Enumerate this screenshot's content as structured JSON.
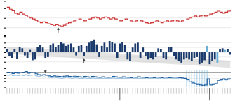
{
  "chart_data": [
    {
      "type": "line",
      "line_style": "step",
      "series": [
        {
          "color": "#cc3333",
          "values": [
            0.72,
            0.68,
            0.65,
            0.6,
            0.58,
            0.62,
            0.58,
            0.55,
            0.52,
            0.5,
            0.48,
            0.45,
            0.42,
            0.4,
            0.42,
            0.4,
            0.38,
            0.36,
            0.34,
            0.36,
            0.34,
            0.32,
            0.35,
            0.38,
            0.4,
            0.42,
            0.44,
            0.46,
            0.48,
            0.46,
            0.44,
            0.46,
            0.48,
            0.5,
            0.52,
            0.5,
            0.48,
            0.5,
            0.52,
            0.5,
            0.48,
            0.5,
            0.48,
            0.46,
            0.44,
            0.46,
            0.48,
            0.46,
            0.44,
            0.42,
            0.44,
            0.46,
            0.44,
            0.42,
            0.4,
            0.38,
            0.4,
            0.42,
            0.44,
            0.42,
            0.4,
            0.42,
            0.44,
            0.42,
            0.44,
            0.46,
            0.44,
            0.42,
            0.44,
            0.46,
            0.48,
            0.5,
            0.52,
            0.54,
            0.52,
            0.54,
            0.56,
            0.54,
            0.56,
            0.58,
            0.6,
            0.62,
            0.64,
            0.62,
            0.6,
            0.62,
            0.64,
            0.66
          ]
        }
      ],
      "ylim": [
        0.15,
        0.85
      ],
      "yticks": [
        0.3,
        0.5,
        0.7
      ],
      "grid": true,
      "tick_labels": false,
      "arrows": [
        20
      ]
    },
    {
      "type": "bar",
      "values": [
        2.0,
        -2.5,
        -3.5,
        2.0,
        -4.0,
        3.5,
        2.5,
        -2.0,
        -3.5,
        1.5,
        -5.0,
        -4.5,
        3.5,
        4.5,
        3.0,
        -3.5,
        -3.0,
        4.5,
        5.5,
        3.5,
        4.5,
        6.5,
        5.5,
        4.0,
        5.0,
        5.5,
        3.0,
        -2.0,
        4.0,
        4.5,
        -2.5,
        4.0,
        6.0,
        7.0,
        8.0,
        5.0,
        -3.0,
        4.0,
        6.0,
        3.0,
        7.0,
        6.5,
        5.5,
        -3.5,
        5.5,
        6.5,
        4.5,
        -4.5,
        -5.5,
        3.0,
        5.5,
        6.0,
        -3.5,
        3.0,
        -2.5,
        -4.5,
        -3.5,
        -4.5,
        -3.0,
        2.5,
        2.0,
        -3.5,
        -4.5,
        3.5,
        3.5,
        -2.5,
        -4.5,
        -5.5,
        -6.5,
        -4.5,
        -3.5,
        -4.5,
        -5.5,
        -3.5,
        -3.0,
        -7.5,
        -6.5,
        -5.0,
        4.0,
        -7.5,
        -5.5,
        -4.5,
        -6.5,
        2.0,
        2.5,
        1.5,
        2.0,
        -1.5
      ],
      "colors": [
        "#1a3a6b",
        "#1a3a6b",
        "#1a3a6b",
        "#1a3a6b",
        "#1a3a6b",
        "#1a3a6b",
        "#1a3a6b",
        "#1a3a6b",
        "#1a3a6b",
        "#1a3a6b",
        "#1a3a6b",
        "#1a3a6b",
        "#1a3a6b",
        "#1a3a6b",
        "#1a3a6b",
        "#1a3a6b",
        "#1a3a6b",
        "#1a3a6b",
        "#1a3a6b",
        "#1a3a6b",
        "#1a3a6b",
        "#1a3a6b",
        "#1a3a6b",
        "#1a3a6b",
        "#1a3a6b",
        "#1a3a6b",
        "#1a3a6b",
        "#1a3a6b",
        "#1a3a6b",
        "#1a3a6b",
        "#1a3a6b",
        "#1a3a6b",
        "#1a3a6b",
        "#1a3a6b",
        "#1a3a6b",
        "#1a3a6b",
        "#1a3a6b",
        "#1a3a6b",
        "#1a3a6b",
        "#1a3a6b",
        "#1a3a6b",
        "#1a3a6b",
        "#1a3a6b",
        "#1a3a6b",
        "#1a3a6b",
        "#1a3a6b",
        "#1a3a6b",
        "#1a3a6b",
        "#1a3a6b",
        "#1a3a6b",
        "#1a3a6b",
        "#1a3a6b",
        "#1a3a6b",
        "#1a3a6b",
        "#1a3a6b",
        "#1a3a6b",
        "#1a3a6b",
        "#1a3a6b",
        "#1a3a6b",
        "#1a3a6b",
        "#1a3a6b",
        "#1a3a6b",
        "#1a3a6b",
        "#1a3a6b",
        "#1a3a6b",
        "#1a3a6b",
        "#1a3a6b",
        "#1a3a6b",
        "#1a3a6b",
        "#1a3a6b",
        "#1a3a6b",
        "#1a3a6b",
        "#1a3a6b",
        "#1a3a6b",
        "#1a3a6b",
        "#1a3a6b",
        "#1a3a6b",
        "#1a3a6b",
        "#6aaed6",
        "#1a3a6b",
        "#1a3a6b",
        "#1a3a6b",
        "#6aaed6",
        "#1a3a6b",
        "#1a3a6b",
        "#6aaed6",
        "#1a3a6b",
        "#1a3a6b"
      ],
      "band_upper": [
        3.5,
        3.4,
        3.3,
        3.2,
        3.1,
        3.0,
        2.9,
        2.8,
        2.7,
        2.6,
        2.5,
        2.4,
        2.3,
        2.2,
        2.1,
        2.0,
        1.9,
        1.8,
        1.7,
        1.6,
        1.5,
        1.4,
        1.3,
        1.2,
        1.1,
        1.0,
        0.9,
        0.8,
        0.7,
        0.6,
        0.5,
        0.4,
        0.3,
        0.2,
        0.1,
        0.0,
        -0.1,
        -0.2,
        -0.3,
        -0.4,
        -0.5,
        -0.6,
        -0.7,
        -0.8,
        -0.9,
        -1.0,
        -1.1,
        -1.2,
        -1.3,
        -1.4,
        -1.5,
        -1.6,
        -1.7,
        -1.8,
        -1.9,
        -2.0,
        -2.1,
        -2.2,
        -2.3,
        -2.4,
        -2.5,
        -2.6,
        -2.7,
        -2.8,
        -2.9,
        -3.0,
        -3.1,
        -3.2,
        -3.3,
        -3.4,
        -3.5,
        -3.6,
        -3.7,
        -3.8,
        -3.9,
        -4.0,
        -4.1,
        -4.2,
        -4.3,
        -4.4,
        -4.5,
        -4.6,
        -4.7,
        -4.8,
        -4.9,
        -5.0,
        -5.1,
        -5.2
      ],
      "band_lower": [
        -1.0,
        -1.1,
        -1.2,
        -1.3,
        -1.4,
        -1.5,
        -1.6,
        -1.7,
        -1.8,
        -1.9,
        -2.0,
        -2.1,
        -2.2,
        -2.3,
        -2.4,
        -2.5,
        -2.6,
        -2.7,
        -2.8,
        -2.9,
        -3.0,
        -3.1,
        -3.2,
        -3.3,
        -3.4,
        -3.5,
        -3.6,
        -3.7,
        -3.8,
        -3.9,
        -4.0,
        -4.1,
        -4.2,
        -4.3,
        -4.4,
        -4.5,
        -4.6,
        -4.7,
        -4.8,
        -4.9,
        -5.0,
        -5.1,
        -5.2,
        -5.3,
        -5.4,
        -5.5,
        -5.6,
        -5.7,
        -5.8,
        -5.9,
        -6.0,
        -6.1,
        -6.2,
        -6.3,
        -6.4,
        -6.5,
        -6.6,
        -6.7,
        -6.8,
        -6.9,
        -7.0,
        -7.1,
        -7.2,
        -7.3,
        -7.4,
        -7.5,
        -7.6,
        -7.7,
        -7.8,
        -7.9,
        -8.0,
        -8.1,
        -8.2,
        -8.3,
        -8.4,
        -8.5,
        -8.6,
        -8.7,
        -8.8,
        -8.9,
        -9.0,
        -9.1,
        -9.2,
        -9.3,
        -9.4,
        -9.5,
        -9.6,
        -9.7
      ],
      "ylim": [
        -10,
        10
      ],
      "yticks": [
        -6,
        -3,
        0,
        3,
        6
      ],
      "grid": true,
      "tick_labels": false,
      "arrows": [
        30
      ]
    },
    {
      "type": "line",
      "line_style": "step",
      "series": [
        {
          "color": "#90bce0",
          "values": [
            0.2,
            0.22,
            0.19,
            0.2,
            0.19,
            0.21,
            0.19,
            0.22,
            0.19,
            0.2,
            0.21,
            0.18,
            0.16,
            0.14,
            0.15,
            0.14,
            0.13,
            0.12,
            0.13,
            0.12,
            0.11,
            0.1,
            0.12,
            0.13,
            0.11,
            0.1,
            0.12,
            0.11,
            0.1,
            0.1,
            0.11,
            0.1,
            0.1,
            0.11,
            0.1,
            0.1,
            0.09,
            0.1,
            0.1,
            0.09,
            0.1,
            0.11,
            0.1,
            0.1,
            0.09,
            0.1,
            0.1,
            0.09,
            0.08,
            0.1,
            0.09,
            0.1,
            0.1,
            0.09,
            0.08,
            0.1,
            0.09,
            0.08,
            0.1,
            0.09,
            0.08,
            0.1,
            0.09,
            0.08,
            0.09,
            0.1,
            0.09,
            0.08,
            0.08,
            0.07,
            0.04,
            0.0,
            -0.03,
            -0.06,
            -0.07,
            -0.08,
            -0.1,
            -0.08,
            0.06,
            -0.08,
            -0.07,
            -0.06,
            0.01,
            0.03,
            0.06,
            0.04,
            0.06,
            0.07
          ]
        },
        {
          "color": "#2060a0",
          "values": [
            0.28,
            0.3,
            0.26,
            0.28,
            0.27,
            0.3,
            0.28,
            0.32,
            0.27,
            0.29,
            0.3,
            0.25,
            0.22,
            0.2,
            0.22,
            0.2,
            0.18,
            0.16,
            0.18,
            0.17,
            0.16,
            0.15,
            0.17,
            0.18,
            0.16,
            0.15,
            0.17,
            0.16,
            0.15,
            0.14,
            0.16,
            0.15,
            0.14,
            0.16,
            0.15,
            0.14,
            0.13,
            0.15,
            0.14,
            0.13,
            0.14,
            0.16,
            0.15,
            0.14,
            0.13,
            0.15,
            0.14,
            0.13,
            0.12,
            0.14,
            0.13,
            0.15,
            0.14,
            0.13,
            0.12,
            0.14,
            0.13,
            0.12,
            0.14,
            0.13,
            0.12,
            0.14,
            0.13,
            0.12,
            0.13,
            0.14,
            0.13,
            0.12,
            0.11,
            0.1,
            0.05,
            0.0,
            -0.05,
            -0.08,
            -0.1,
            -0.12,
            -0.14,
            -0.12,
            0.08,
            -0.12,
            -0.1,
            -0.08,
            0.02,
            0.05,
            0.08,
            0.06,
            0.08,
            0.1
          ]
        }
      ],
      "ylim": [
        -0.2,
        0.38
      ],
      "yticks": [
        0.0,
        0.1,
        0.2
      ],
      "grid": true,
      "tick_labels": false,
      "hlines": [
        0.28
      ],
      "highlight": [
        70,
        71,
        72,
        73,
        74,
        75,
        76,
        77,
        78
      ],
      "arrows": [
        15
      ],
      "separators": [
        44,
        79
      ]
    }
  ]
}
